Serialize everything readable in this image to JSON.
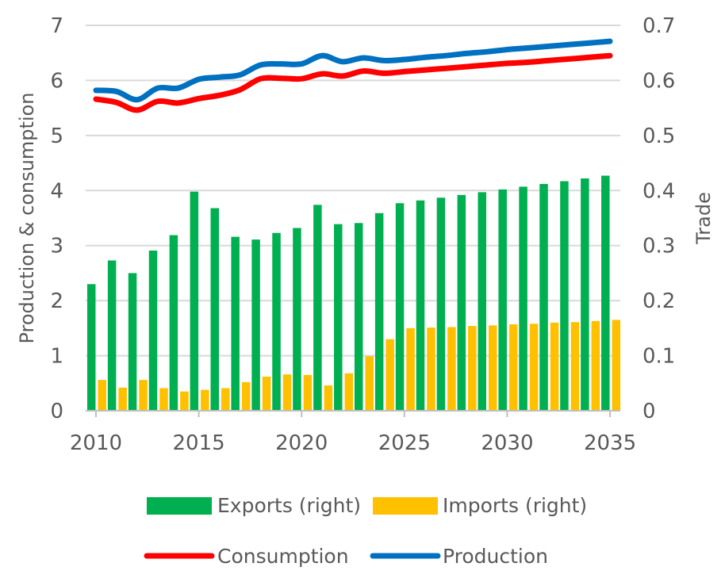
{
  "chart_data": {
    "type": "bar+line",
    "x": [
      2010,
      2011,
      2012,
      2013,
      2014,
      2015,
      2016,
      2017,
      2018,
      2019,
      2020,
      2021,
      2022,
      2023,
      2024,
      2025,
      2026,
      2027,
      2028,
      2029,
      2030,
      2031,
      2032,
      2033,
      2034,
      2035
    ],
    "x_ticks": [
      "2010",
      "2015",
      "2020",
      "2025",
      "2030",
      "2035"
    ],
    "y_left": {
      "label": "Production & consumption",
      "ylim": [
        0,
        7
      ],
      "ticks": [
        "0",
        "1",
        "2",
        "3",
        "4",
        "5",
        "6",
        "7"
      ]
    },
    "y_right": {
      "label": "Trade",
      "ylim": [
        0,
        0.7
      ],
      "ticks": [
        "0",
        "0.1",
        "0.2",
        "0.3",
        "0.4",
        "0.5",
        "0.6",
        "0.7"
      ]
    },
    "grid": true,
    "bar_series": [
      {
        "name": "Exports (right)",
        "axis": "right",
        "color": "#00b050",
        "values": [
          0.23,
          0.273,
          0.25,
          0.291,
          0.319,
          0.398,
          0.368,
          0.316,
          0.311,
          0.323,
          0.332,
          0.374,
          0.339,
          0.341,
          0.359,
          0.377,
          0.382,
          0.387,
          0.392,
          0.397,
          0.402,
          0.407,
          0.412,
          0.417,
          0.422,
          0.427
        ]
      },
      {
        "name": "Imports (right)",
        "axis": "right",
        "color": "#ffc000",
        "values": [
          0.056,
          0.042,
          0.056,
          0.041,
          0.035,
          0.038,
          0.041,
          0.052,
          0.062,
          0.066,
          0.065,
          0.046,
          0.068,
          0.099,
          0.13,
          0.15,
          0.151,
          0.152,
          0.154,
          0.155,
          0.157,
          0.158,
          0.16,
          0.161,
          0.163,
          0.165
        ]
      }
    ],
    "line_series": [
      {
        "name": "Consumption",
        "axis": "left",
        "color": "#ff0000",
        "values": [
          5.66,
          5.6,
          5.46,
          5.62,
          5.59,
          5.67,
          5.73,
          5.83,
          6.03,
          6.04,
          6.03,
          6.12,
          6.08,
          6.17,
          6.13,
          6.16,
          6.19,
          6.22,
          6.25,
          6.28,
          6.31,
          6.33,
          6.36,
          6.39,
          6.42,
          6.45
        ]
      },
      {
        "name": "Production",
        "axis": "left",
        "color": "#0070c0",
        "values": [
          5.82,
          5.8,
          5.65,
          5.86,
          5.86,
          6.02,
          6.06,
          6.1,
          6.28,
          6.3,
          6.3,
          6.45,
          6.34,
          6.41,
          6.36,
          6.38,
          6.42,
          6.45,
          6.49,
          6.52,
          6.56,
          6.59,
          6.62,
          6.65,
          6.68,
          6.71
        ]
      }
    ],
    "legend_placement": "bottom"
  }
}
